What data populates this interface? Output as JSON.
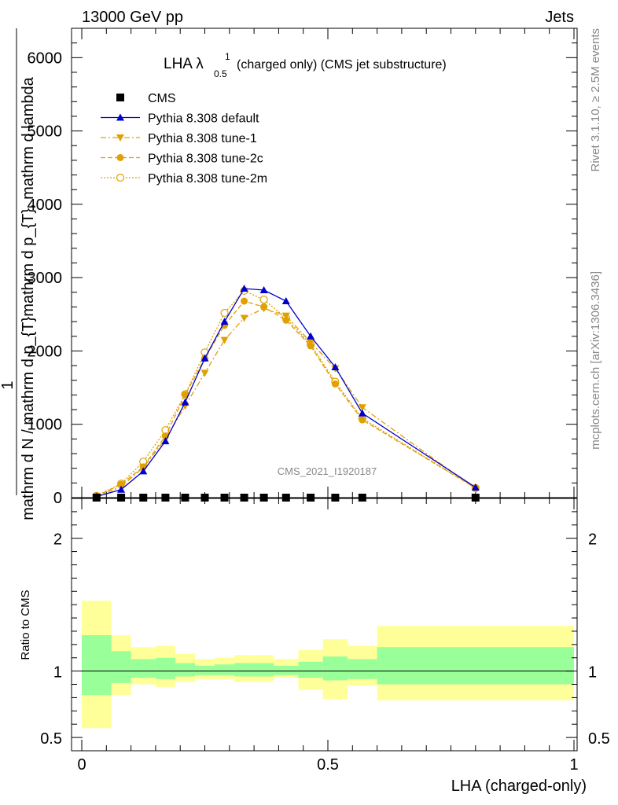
{
  "header": {
    "left": "13000 GeV pp",
    "right": "Jets"
  },
  "side": {
    "rivet": "Rivet 3.1.10, ≥ 2.5M events",
    "mcplots": "mcplots.cern.ch [arXiv:1306.3436]"
  },
  "chart_data": {
    "type": "line",
    "title_main": "LHA λ",
    "title_sup": "1",
    "title_sub": "0.5",
    "title_rest": "(charged only) (CMS jet substructure)",
    "watermark": "CMS_2021_I1920187",
    "xlabel": "LHA (charged-only)",
    "ylabel_num": "1",
    "ylabel_den": "mathrm d N / mathrm d p_{T}mathrm d p_{T}, mathrm d lambda",
    "ylabel_frac_num": "mathrm d²N",
    "ylabel_frac_den": "mathrm d p_{T} mathrm d lambda",
    "ratio_ylabel": "Ratio to CMS",
    "xlim": [
      0,
      1
    ],
    "ylim": [
      0,
      6400
    ],
    "ratio_ylim": [
      0.4,
      2.3
    ],
    "x_ticks": [
      "0",
      "0.5",
      "1"
    ],
    "y_ticks": [
      "0",
      "1000",
      "2000",
      "3000",
      "4000",
      "5000",
      "6000"
    ],
    "ratio_ticks": [
      "0.5",
      "1",
      "2"
    ],
    "bins": [
      0,
      0.06,
      0.1,
      0.15,
      0.19,
      0.23,
      0.27,
      0.31,
      0.35,
      0.39,
      0.44,
      0.49,
      0.54,
      0.6,
      1.0
    ],
    "x": [
      0.03,
      0.08,
      0.125,
      0.17,
      0.21,
      0.25,
      0.29,
      0.33,
      0.37,
      0.415,
      0.465,
      0.515,
      0.57,
      0.8
    ],
    "series": [
      {
        "name": "CMS",
        "color": "#000000",
        "marker": "square",
        "dash": "none",
        "values": [
          0,
          0,
          0,
          0,
          0,
          0,
          0,
          0,
          0,
          0,
          0,
          0,
          0,
          0
        ]
      },
      {
        "name": "Pythia 8.308 default",
        "color": "#0000cc",
        "marker": "triangle-up",
        "dash": "solid",
        "values": [
          15,
          110,
          360,
          770,
          1300,
          1900,
          2400,
          2850,
          2830,
          2680,
          2200,
          1780,
          1150,
          140
        ]
      },
      {
        "name": "Pythia 8.308 tune-1",
        "color": "#e0a000",
        "marker": "triangle-down",
        "dash": "dashdot",
        "values": [
          15,
          150,
          410,
          800,
          1250,
          1700,
          2150,
          2450,
          2580,
          2480,
          2120,
          1760,
          1230,
          120
        ]
      },
      {
        "name": "Pythia 8.308 tune-2c",
        "color": "#e0a000",
        "marker": "circle",
        "dash": "dashed",
        "values": [
          20,
          180,
          420,
          840,
          1400,
          1900,
          2350,
          2680,
          2600,
          2420,
          2070,
          1550,
          1060,
          130
        ]
      },
      {
        "name": "Pythia 8.308 tune-2m",
        "color": "#e0a000",
        "marker": "circle-open",
        "dash": "dotted",
        "values": [
          25,
          190,
          490,
          920,
          1410,
          1980,
          2520,
          2820,
          2700,
          2450,
          2090,
          1580,
          1080,
          130
        ]
      }
    ],
    "ratio_bands": {
      "inner_hi": [
        1.27,
        1.15,
        1.09,
        1.1,
        1.06,
        1.04,
        1.05,
        1.06,
        1.06,
        1.04,
        1.07,
        1.11,
        1.09,
        1.18
      ],
      "inner_lo": [
        0.82,
        0.91,
        0.95,
        0.94,
        0.96,
        0.97,
        0.97,
        0.96,
        0.96,
        0.97,
        0.95,
        0.93,
        0.94,
        0.9
      ],
      "outer_hi": [
        1.53,
        1.27,
        1.18,
        1.19,
        1.13,
        1.09,
        1.1,
        1.12,
        1.12,
        1.09,
        1.16,
        1.24,
        1.19,
        1.34
      ],
      "outer_lo": [
        0.57,
        0.82,
        0.9,
        0.88,
        0.92,
        0.94,
        0.94,
        0.92,
        0.92,
        0.95,
        0.86,
        0.79,
        0.89,
        0.78
      ],
      "inner_color": "#99ff99",
      "outer_color": "#ffff99"
    }
  }
}
